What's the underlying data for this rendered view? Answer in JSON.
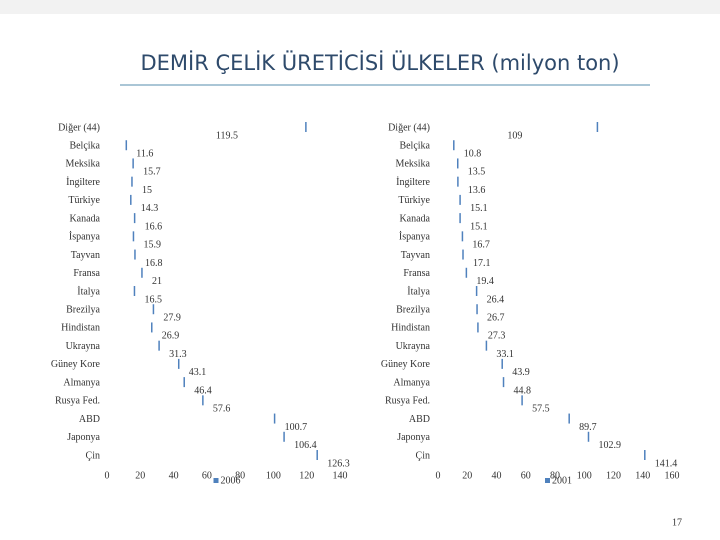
{
  "title": "DEMİR ÇELİK ÜRETİCİSİ ÜLKELER (milyon ton)",
  "page_number": "17",
  "chart_data": [
    {
      "type": "bar",
      "categories": [
        "Diğer (44)",
        "Belçika",
        "Meksika",
        "İngiltere",
        "Türkiye",
        "Kanada",
        "İspanya",
        "Tayvan",
        "Fransa",
        "İtalya",
        "Brezilya",
        "Hindistan",
        "Ukrayna",
        "Güney Kore",
        "Almanya",
        "Rusya Fed.",
        "ABD",
        "Japonya",
        "Çin"
      ],
      "series": [
        {
          "name": "2006",
          "color": "#4f81bd",
          "values": [
            119.5,
            11.6,
            15.7,
            15,
            14.3,
            16.6,
            15.9,
            16.8,
            21,
            16.5,
            27.9,
            26.9,
            31.3,
            43.1,
            46.4,
            57.6,
            100.7,
            106.4,
            126.3
          ]
        }
      ],
      "xlim": [
        0,
        140
      ],
      "xticks": [
        0,
        20,
        40,
        60,
        80,
        100,
        120,
        140
      ]
    },
    {
      "type": "bar",
      "categories": [
        "Diğer (44)",
        "Belçika",
        "Meksika",
        "İngiltere",
        "Türkiye",
        "Kanada",
        "İspanya",
        "Tayvan",
        "Fransa",
        "İtalya",
        "Brezilya",
        "Hindistan",
        "Ukrayna",
        "Güney Kore",
        "Almanya",
        "Rusya Fed.",
        "ABD",
        "Japonya",
        "Çin"
      ],
      "series": [
        {
          "name": "2001",
          "color": "#4f81bd",
          "values": [
            109,
            10.8,
            13.5,
            13.6,
            15.1,
            15.1,
            16.7,
            17.1,
            19.4,
            26.4,
            26.7,
            27.3,
            33.1,
            43.9,
            44.8,
            57.5,
            89.7,
            102.9,
            141.4
          ]
        }
      ],
      "xlim": [
        0,
        160
      ],
      "xticks": [
        0,
        20,
        40,
        60,
        80,
        100,
        120,
        140,
        160
      ]
    }
  ]
}
